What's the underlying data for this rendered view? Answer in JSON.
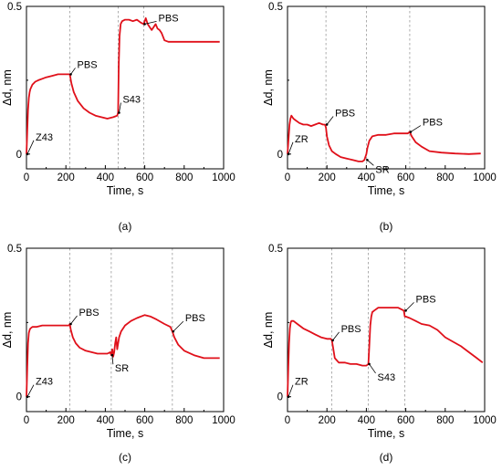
{
  "chart_data": [
    {
      "type": "line",
      "panel_label": "(a)",
      "xlabel": "Time, s",
      "ylabel": "Δd, nm",
      "xlim": [
        0,
        1000
      ],
      "ylim": [
        -0.05,
        0.5
      ],
      "x_ticks": [
        "0",
        "200",
        "400",
        "600",
        "800",
        "1000"
      ],
      "y_ticks": [
        "0",
        "0.5"
      ],
      "grid": false,
      "vlines": [
        220,
        465,
        595
      ],
      "series": [
        {
          "x": [
            0,
            4,
            8,
            12,
            16,
            20,
            30,
            45,
            60,
            80,
            100,
            130,
            160,
            190,
            215,
            220,
            228,
            240,
            260,
            290,
            320,
            350,
            380,
            410,
            440,
            460,
            465,
            468,
            472,
            478,
            485,
            500,
            520,
            540,
            560,
            580,
            595,
            605,
            615,
            625,
            635,
            645,
            655,
            665,
            675,
            685,
            700,
            720,
            760,
            800,
            850,
            900,
            950,
            980
          ],
          "y": [
            0.0,
            0.08,
            0.15,
            0.19,
            0.21,
            0.22,
            0.235,
            0.245,
            0.25,
            0.255,
            0.26,
            0.265,
            0.27,
            0.27,
            0.27,
            0.27,
            0.24,
            0.21,
            0.18,
            0.155,
            0.14,
            0.13,
            0.125,
            0.12,
            0.125,
            0.13,
            0.14,
            0.3,
            0.4,
            0.44,
            0.45,
            0.455,
            0.455,
            0.45,
            0.455,
            0.445,
            0.44,
            0.46,
            0.44,
            0.43,
            0.42,
            0.43,
            0.44,
            0.425,
            0.42,
            0.41,
            0.385,
            0.38,
            0.38,
            0.38,
            0.38,
            0.38,
            0.38,
            0.38
          ]
        }
      ],
      "annotations": [
        {
          "text": "Z43",
          "x": 0,
          "y": 0.0
        },
        {
          "text": "PBS",
          "x": 220,
          "y": 0.27
        },
        {
          "text": "S43",
          "x": 465,
          "y": 0.14
        },
        {
          "text": "PBS",
          "x": 595,
          "y": 0.44
        }
      ]
    },
    {
      "type": "line",
      "panel_label": "(b)",
      "xlabel": "Time, s",
      "ylabel": "Δd, nm",
      "xlim": [
        0,
        1000
      ],
      "ylim": [
        -0.05,
        0.5
      ],
      "x_ticks": [
        "0",
        "200",
        "400",
        "600",
        "800",
        "1000"
      ],
      "y_ticks": [
        "0",
        "0.5"
      ],
      "grid": false,
      "vlines": [
        195,
        400,
        620
      ],
      "series": [
        {
          "x": [
            0,
            5,
            10,
            15,
            20,
            25,
            30,
            40,
            60,
            80,
            100,
            120,
            140,
            160,
            180,
            190,
            195,
            200,
            210,
            225,
            245,
            270,
            300,
            330,
            360,
            380,
            390,
            395,
            400,
            405,
            415,
            430,
            460,
            500,
            540,
            580,
            610,
            620,
            630,
            650,
            680,
            720,
            780,
            850,
            920,
            980
          ],
          "y": [
            0.0,
            0.05,
            0.1,
            0.12,
            0.13,
            0.125,
            0.12,
            0.115,
            0.105,
            0.1,
            0.1,
            0.095,
            0.1,
            0.105,
            0.1,
            0.1,
            0.09,
            0.06,
            0.03,
            0.01,
            0.0,
            -0.01,
            -0.015,
            -0.02,
            -0.025,
            -0.025,
            -0.02,
            -0.01,
            0.0,
            0.02,
            0.045,
            0.06,
            0.065,
            0.065,
            0.07,
            0.07,
            0.07,
            0.075,
            0.06,
            0.04,
            0.025,
            0.01,
            0.005,
            0.002,
            0.0,
            0.002
          ]
        }
      ],
      "annotations": [
        {
          "text": "ZR",
          "x": 0,
          "y": 0.0
        },
        {
          "text": "PBS",
          "x": 195,
          "y": 0.1
        },
        {
          "text": "SR",
          "x": 400,
          "y": -0.02
        },
        {
          "text": "PBS",
          "x": 620,
          "y": 0.075
        }
      ]
    },
    {
      "type": "line",
      "panel_label": "(c)",
      "xlabel": "Time, s",
      "ylabel": "Δd, nm",
      "xlim": [
        0,
        1000
      ],
      "ylim": [
        -0.05,
        0.5
      ],
      "x_ticks": [
        "0",
        "200",
        "400",
        "600",
        "800",
        "1000"
      ],
      "y_ticks": [
        "0",
        "0.5"
      ],
      "grid": false,
      "vlines": [
        220,
        430,
        740
      ],
      "series": [
        {
          "x": [
            0,
            4,
            8,
            12,
            16,
            20,
            30,
            50,
            80,
            120,
            160,
            200,
            215,
            220,
            225,
            235,
            250,
            270,
            300,
            330,
            360,
            390,
            410,
            425,
            430,
            435,
            440,
            445,
            450,
            455,
            460,
            470,
            480,
            500,
            530,
            560,
            600,
            630,
            660,
            700,
            730,
            740,
            750,
            770,
            800,
            850,
            900,
            950,
            980
          ],
          "y": [
            0.0,
            0.1,
            0.18,
            0.215,
            0.225,
            0.23,
            0.235,
            0.235,
            0.24,
            0.24,
            0.24,
            0.24,
            0.24,
            0.245,
            0.225,
            0.2,
            0.18,
            0.165,
            0.155,
            0.15,
            0.145,
            0.145,
            0.145,
            0.15,
            0.14,
            0.16,
            0.135,
            0.15,
            0.18,
            0.2,
            0.16,
            0.2,
            0.22,
            0.24,
            0.255,
            0.265,
            0.275,
            0.27,
            0.26,
            0.245,
            0.235,
            0.22,
            0.2,
            0.175,
            0.155,
            0.14,
            0.13,
            0.13,
            0.13
          ]
        }
      ],
      "annotations": [
        {
          "text": "Z43",
          "x": 0,
          "y": 0.0
        },
        {
          "text": "PBS",
          "x": 220,
          "y": 0.245
        },
        {
          "text": "SR",
          "x": 430,
          "y": 0.14
        },
        {
          "text": "PBS",
          "x": 740,
          "y": 0.22
        }
      ]
    },
    {
      "type": "line",
      "panel_label": "(d)",
      "xlabel": "Time, s",
      "ylabel": "Δd, nm",
      "xlim": [
        0,
        1000
      ],
      "ylim": [
        -0.05,
        0.5
      ],
      "x_ticks": [
        "0",
        "200",
        "400",
        "600",
        "800",
        "1000"
      ],
      "y_ticks": [
        "0",
        "0.5"
      ],
      "grid": false,
      "vlines": [
        225,
        410,
        595
      ],
      "series": [
        {
          "x": [
            0,
            4,
            8,
            12,
            16,
            20,
            30,
            50,
            80,
            110,
            140,
            170,
            200,
            220,
            225,
            230,
            240,
            260,
            290,
            320,
            350,
            380,
            400,
            410,
            415,
            420,
            425,
            430,
            440,
            460,
            490,
            520,
            560,
            590,
            595,
            600,
            620,
            650,
            680,
            720,
            760,
            800,
            840,
            880,
            920,
            960,
            990
          ],
          "y": [
            0.0,
            0.1,
            0.18,
            0.23,
            0.25,
            0.255,
            0.255,
            0.245,
            0.23,
            0.22,
            0.21,
            0.2,
            0.195,
            0.195,
            0.19,
            0.17,
            0.13,
            0.115,
            0.115,
            0.11,
            0.11,
            0.105,
            0.105,
            0.11,
            0.17,
            0.24,
            0.27,
            0.285,
            0.29,
            0.3,
            0.3,
            0.3,
            0.3,
            0.29,
            0.27,
            0.27,
            0.265,
            0.255,
            0.245,
            0.24,
            0.225,
            0.2,
            0.185,
            0.17,
            0.15,
            0.13,
            0.115
          ]
        }
      ],
      "annotations": [
        {
          "text": "ZR",
          "x": 0,
          "y": 0.0
        },
        {
          "text": "PBS",
          "x": 225,
          "y": 0.19
        },
        {
          "text": "S43",
          "x": 410,
          "y": 0.11
        },
        {
          "text": "PBS",
          "x": 595,
          "y": 0.29
        }
      ]
    }
  ]
}
